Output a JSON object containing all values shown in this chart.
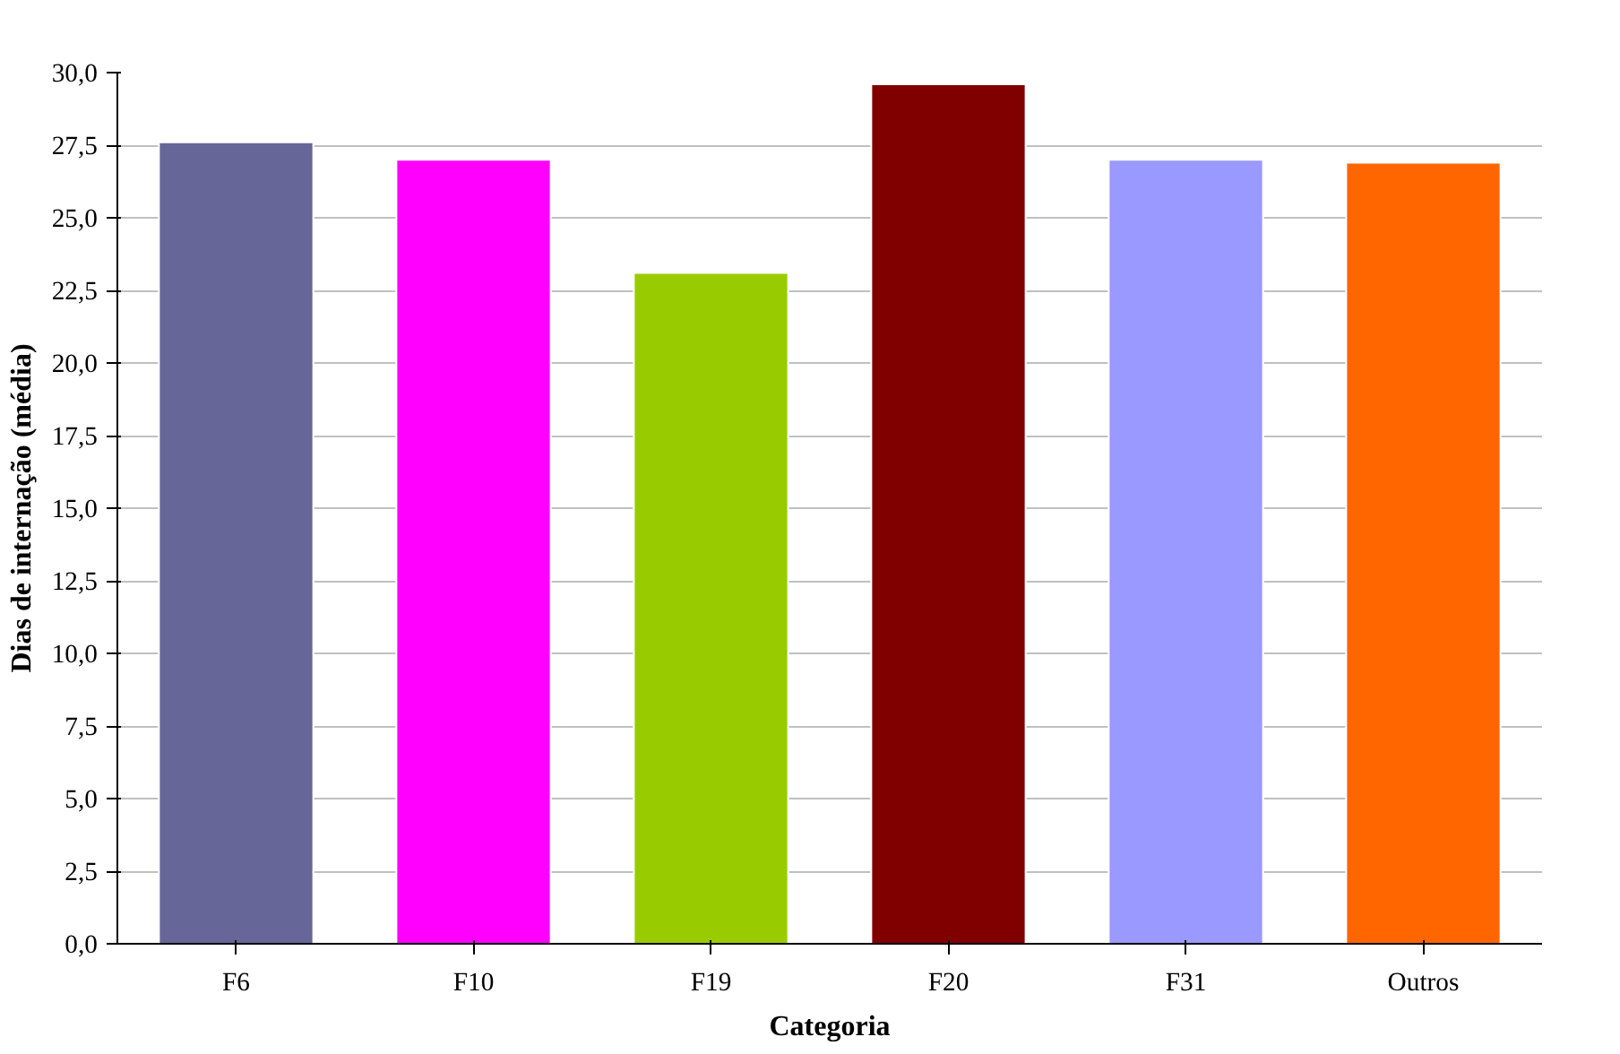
{
  "chart_data": {
    "type": "bar",
    "xlabel": "Categoria",
    "ylabel": "Dias de internação (média)",
    "categories": [
      "F6",
      "F10",
      "F19",
      "F20",
      "F31",
      "Outros"
    ],
    "values": [
      27.6,
      27.0,
      23.1,
      29.6,
      27.0,
      26.9
    ],
    "colors": [
      "#666699",
      "#ff00ff",
      "#99cc00",
      "#800000",
      "#9999ff",
      "#ff6600"
    ],
    "ylim": [
      0,
      30
    ],
    "yticks": [
      {
        "value": 0,
        "label": "0,0"
      },
      {
        "value": 2.5,
        "label": "2,5"
      },
      {
        "value": 5,
        "label": "5,0"
      },
      {
        "value": 7.5,
        "label": "7,5"
      },
      {
        "value": 10,
        "label": "10,0"
      },
      {
        "value": 12.5,
        "label": "12,5"
      },
      {
        "value": 15,
        "label": "15,0"
      },
      {
        "value": 17.5,
        "label": "17,5"
      },
      {
        "value": 20,
        "label": "20,0"
      },
      {
        "value": 22.5,
        "label": "22,5"
      },
      {
        "value": 25,
        "label": "25,0"
      },
      {
        "value": 27.5,
        "label": "27,5"
      },
      {
        "value": 30,
        "label": "30,0"
      }
    ],
    "grid": "y"
  }
}
